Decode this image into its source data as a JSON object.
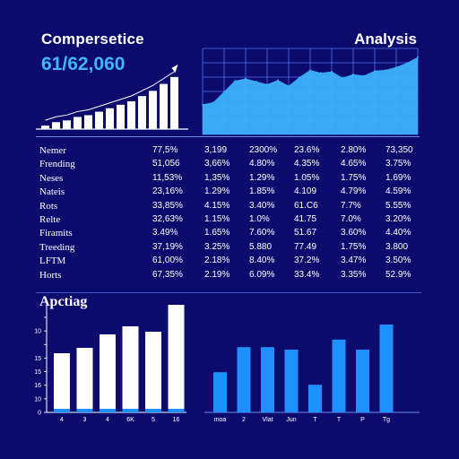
{
  "header": {
    "title_left": "Compersetice",
    "big_number": "61/62,060",
    "title_right": "Analysis",
    "section2_title": "Apctiag"
  },
  "colors": {
    "background": "#0b0b6e",
    "accent_blue": "#3fb6ff",
    "bar_blue": "#1e90ff",
    "white": "#ffffff"
  },
  "table": {
    "rows": [
      [
        "Nemer",
        "77,5%",
        "3,199",
        "2300%",
        "23.6%",
        "2.80%",
        "73,350"
      ],
      [
        "Frending",
        "51,056",
        "3,66%",
        "4.80%",
        "4.35%",
        "4.65%",
        "3.75%"
      ],
      [
        "Neses",
        "11,53%",
        "1,35%",
        "1.29%",
        "1.05%",
        "1.75%",
        "1.69%"
      ],
      [
        "Nateis",
        "23,16%",
        "1.29%",
        "1.85%",
        "4.109",
        "4.79%",
        "4.59%"
      ],
      [
        "Rots",
        "33,85%",
        "4.15%",
        "3.40%",
        "61.C6",
        "7.7%",
        "5.55%"
      ],
      [
        "Relte",
        "32,63%",
        "1.15%",
        "1.0%",
        "41.75",
        "7.0%",
        "3.20%"
      ],
      [
        "Firamits",
        "3.49%",
        "1.65%",
        "7.60%",
        "51.67",
        "3.60%",
        "4.40%"
      ],
      [
        "Treeding",
        "37,19%",
        "3.25%",
        "5.880",
        "77.49",
        "1.75%",
        "3.800"
      ],
      [
        "LFTM",
        "61,00%",
        "2.18%",
        "8.40%",
        "37.2%",
        "3.47%",
        "3.50%"
      ],
      [
        "Horts",
        "67,35%",
        "2.19%",
        "6.09%",
        "33.4%",
        "3.35%",
        "52.9%"
      ]
    ]
  },
  "chart_data": [
    {
      "type": "bar",
      "categories": [
        "",
        "",
        "",
        "",
        "",
        "",
        "",
        "",
        "",
        "",
        "",
        "",
        ""
      ],
      "values": [
        2,
        4,
        5,
        7,
        8,
        10,
        12,
        14,
        16,
        19,
        22,
        26,
        30
      ],
      "title": "",
      "xlabel": "",
      "ylabel": "",
      "ylim": [
        0,
        32
      ],
      "trend_arrow": true
    },
    {
      "type": "area",
      "x": [
        0,
        1,
        2,
        3,
        4,
        5,
        6,
        7,
        8,
        9,
        10,
        11,
        12,
        13,
        14,
        15,
        16,
        17,
        18,
        19,
        20
      ],
      "values": [
        42,
        45,
        60,
        75,
        78,
        74,
        70,
        76,
        68,
        80,
        90,
        86,
        88,
        79,
        84,
        82,
        89,
        90,
        94,
        100,
        108
      ],
      "ylim": [
        0,
        120
      ],
      "grid": true,
      "title": "",
      "xlabel": "",
      "ylabel": ""
    },
    {
      "type": "bar",
      "categories": [
        "4",
        "3",
        "4",
        "6K",
        "5",
        "16"
      ],
      "values": [
        11,
        12,
        14.5,
        16,
        15,
        20
      ],
      "yticks": [
        "",
        "10",
        "",
        "15",
        "15",
        "16",
        "10",
        "0"
      ],
      "ylim": [
        0,
        20
      ],
      "title": "",
      "xlabel": "",
      "ylabel": ""
    },
    {
      "type": "bar",
      "categories": [
        "moa",
        "2",
        "Vlat",
        "Jun",
        "T",
        "T",
        "P",
        "Tg"
      ],
      "values": [
        8,
        13,
        13,
        12.5,
        5.5,
        14.5,
        12.5,
        17.5
      ],
      "ylim": [
        0,
        20
      ],
      "title": "",
      "xlabel": "",
      "ylabel": ""
    }
  ]
}
